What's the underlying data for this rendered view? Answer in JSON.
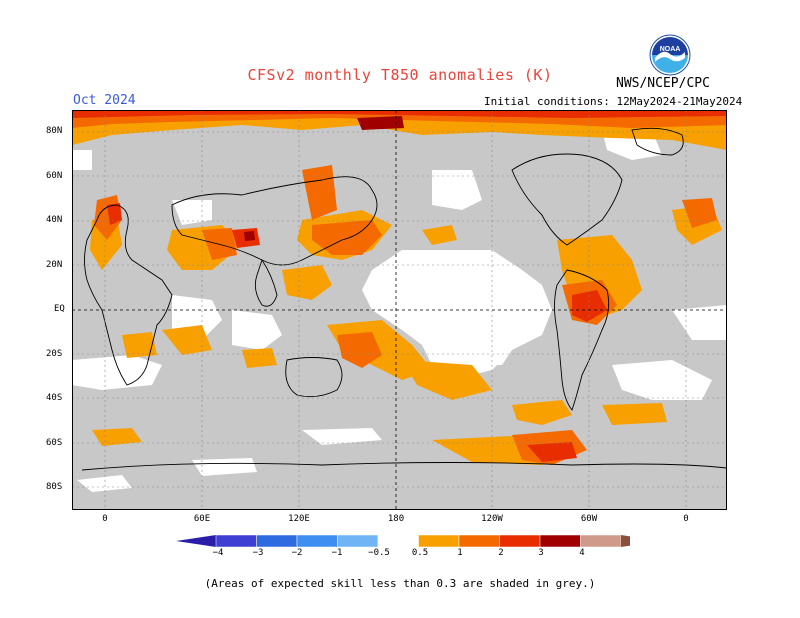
{
  "header": {
    "title": "CFSv2 monthly T850 anomalies (K)",
    "agency": "NWS/NCEP/CPC",
    "logo_text": "NOAA",
    "month": "Oct 2024",
    "initial_conditions": "Initial conditions: 12May2024-21May2024"
  },
  "axes": {
    "lat_labels": [
      "80N",
      "60N",
      "40N",
      "20N",
      "EQ",
      "20S",
      "40S",
      "60S",
      "80S"
    ],
    "lon_labels": [
      "0",
      "60E",
      "120E",
      "180",
      "120W",
      "60W",
      "0"
    ]
  },
  "colorbar": {
    "labels": [
      "−4",
      "−3",
      "−2",
      "−1",
      "−0.5",
      "0.5",
      "1",
      "2",
      "3",
      "4"
    ],
    "colors": [
      "#2a1ea8",
      "#3f3fd4",
      "#2f6be0",
      "#3d8ef0",
      "#6fb4f5",
      "#ffffff",
      "#f7a000",
      "#f46a00",
      "#e82e00",
      "#a00000",
      "#d09a8a",
      "#8a5040"
    ]
  },
  "legend_colors": {
    "grey_low_skill": "#c8c8c8",
    "anomaly_0_5_1": "#f7a000",
    "anomaly_1_2": "#f46a00",
    "anomaly_2_3": "#e82e00",
    "anomaly_3_4": "#a00000"
  },
  "footnote": "(Areas of expected skill less than 0.3 are shaded in grey.)"
}
